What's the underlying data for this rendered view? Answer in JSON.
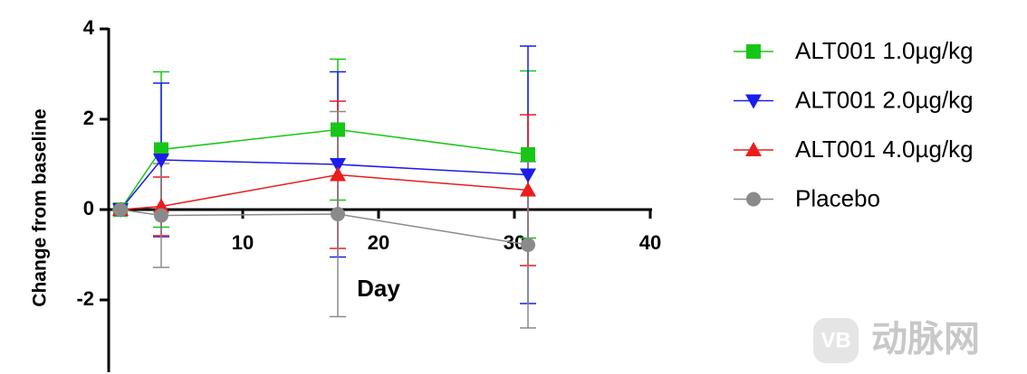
{
  "chart_data": {
    "type": "line",
    "x_label": "Day",
    "y_label": "Change from baseline",
    "x": [
      1,
      4,
      17,
      31
    ],
    "xlim": [
      0,
      40
    ],
    "xticks": [
      10,
      20,
      30,
      40
    ],
    "ylim": [
      -3.6,
      4
    ],
    "yticks": [
      -2,
      0,
      2,
      4
    ],
    "legend": "right",
    "series": [
      {
        "name": "ALT001 1.0µg/kg",
        "color": "#17c617",
        "marker": "square",
        "values": [
          0,
          1.33,
          1.77,
          1.22
        ],
        "errors": [
          0,
          1.72,
          1.56,
          1.85
        ]
      },
      {
        "name": "ALT001 2.0µg/kg",
        "color": "#1c1ced",
        "marker": "triangle-down",
        "values": [
          0,
          1.1,
          1.0,
          0.77
        ],
        "errors": [
          0,
          1.7,
          2.05,
          2.85
        ]
      },
      {
        "name": "ALT001 4.0µg/kg",
        "color": "#ec1c1c",
        "marker": "triangle-up",
        "values": [
          0,
          0.07,
          0.77,
          0.43
        ],
        "errors": [
          0,
          0.65,
          1.63,
          1.67
        ]
      },
      {
        "name": "Placebo",
        "color": "#8a8a8a",
        "marker": "circle",
        "values": [
          0,
          -0.13,
          -0.1,
          -0.78
        ],
        "errors": [
          0,
          1.15,
          2.27,
          1.84
        ]
      }
    ]
  },
  "watermark": "动脉网"
}
